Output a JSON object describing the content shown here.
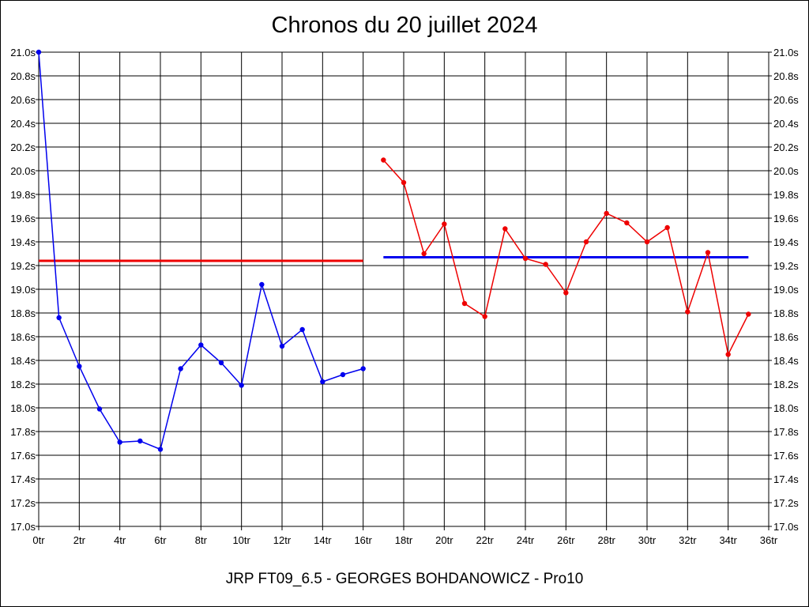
{
  "title": "Chronos du 20 juillet 2024",
  "footer": "JRP FT09_6.5 - GEORGES BOHDANOWICZ - Pro10",
  "colors": {
    "blue": "#0000ee",
    "red": "#ee0000",
    "grid": "#000000"
  },
  "chart_data": {
    "type": "line",
    "title": "Chronos du 20 juillet 2024",
    "xlabel": "",
    "ylabel": "",
    "xlim": [
      0,
      36
    ],
    "ylim": [
      17.0,
      21.0
    ],
    "x_ticks": [
      0,
      2,
      4,
      6,
      8,
      10,
      12,
      14,
      16,
      18,
      20,
      22,
      24,
      26,
      28,
      30,
      32,
      34,
      36
    ],
    "x_tick_labels": [
      "0tr",
      "2tr",
      "4tr",
      "6tr",
      "8tr",
      "10tr",
      "12tr",
      "14tr",
      "16tr",
      "18tr",
      "20tr",
      "22tr",
      "24tr",
      "26tr",
      "28tr",
      "30tr",
      "32tr",
      "34tr",
      "36tr"
    ],
    "y_ticks": [
      17.0,
      17.2,
      17.4,
      17.6,
      17.8,
      18.0,
      18.2,
      18.4,
      18.6,
      18.8,
      19.0,
      19.2,
      19.4,
      19.6,
      19.8,
      20.0,
      20.2,
      20.4,
      20.6,
      20.8,
      21.0
    ],
    "y_tick_labels": [
      "17.0s",
      "17.2s",
      "17.4s",
      "17.6s",
      "17.8s",
      "18.0s",
      "18.2s",
      "18.4s",
      "18.6s",
      "18.8s",
      "19.0s",
      "19.2s",
      "19.4s",
      "19.6s",
      "19.8s",
      "20.0s",
      "20.2s",
      "20.4s",
      "20.6s",
      "20.8s",
      "21.0s"
    ],
    "grid": true,
    "series": [
      {
        "color": "#0000ee",
        "x": [
          0,
          1,
          2,
          3,
          4,
          5,
          6,
          7,
          8,
          9,
          10,
          11,
          12,
          13,
          14,
          15,
          16
        ],
        "y": [
          21.0,
          18.76,
          18.35,
          17.99,
          17.71,
          17.72,
          17.65,
          18.33,
          18.53,
          18.38,
          18.19,
          19.04,
          18.52,
          18.66,
          18.22,
          18.28,
          18.33
        ]
      },
      {
        "color": "#ee0000",
        "x": [
          17,
          18,
          19,
          20,
          21,
          22,
          23,
          24,
          25,
          26,
          27,
          28,
          29,
          30,
          31,
          32,
          33,
          34,
          35
        ],
        "y": [
          20.09,
          19.9,
          19.3,
          19.55,
          18.88,
          18.77,
          19.51,
          19.26,
          19.21,
          18.97,
          19.4,
          19.64,
          19.56,
          19.4,
          19.52,
          18.81,
          19.31,
          18.45,
          18.79
        ]
      }
    ],
    "average_lines": [
      {
        "color": "#ee0000",
        "x": [
          0,
          16
        ],
        "y": 19.24
      },
      {
        "color": "#0000ee",
        "x": [
          17,
          35
        ],
        "y": 19.27
      }
    ]
  }
}
